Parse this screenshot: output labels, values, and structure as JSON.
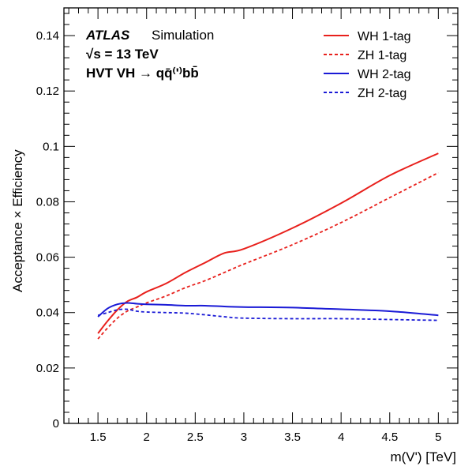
{
  "chart_data": {
    "type": "line",
    "xlabel": "m(V') [TeV]",
    "ylabel": "Acceptance × Efficiency",
    "xlim": [
      1.15,
      5.2
    ],
    "ylim": [
      0,
      0.15
    ],
    "xticks": [
      1.5,
      2,
      2.5,
      3,
      3.5,
      4,
      4.5,
      5
    ],
    "xtick_labels": [
      "1.5",
      "2",
      "2.5",
      "3",
      "3.5",
      "4",
      "4.5",
      "5"
    ],
    "yticks": [
      0,
      0.02,
      0.04,
      0.06,
      0.08,
      0.1,
      0.12,
      0.14
    ],
    "ytick_labels": [
      "0",
      "0.02",
      "0.04",
      "0.06",
      "0.08",
      "0.1",
      "0.12",
      "0.14"
    ],
    "annotations": {
      "experiment": "ATLAS",
      "label": "Simulation",
      "energy": "√s = 13 TeV",
      "process": "HVT VH → qq̄⁽'⁾bb̄"
    },
    "legend_position": "top-right",
    "series": [
      {
        "name": "WH 1-tag",
        "color": "#e8201c",
        "dash": "solid",
        "x": [
          1.5,
          1.6,
          1.7,
          1.8,
          1.9,
          2.0,
          2.2,
          2.4,
          2.6,
          2.8,
          3.0,
          3.5,
          4.0,
          4.5,
          5.0
        ],
        "y": [
          0.0325,
          0.037,
          0.041,
          0.044,
          0.0455,
          0.0475,
          0.0505,
          0.0545,
          0.058,
          0.0615,
          0.063,
          0.0705,
          0.0795,
          0.0895,
          0.0975
        ]
      },
      {
        "name": "ZH 1-tag",
        "color": "#e8201c",
        "dash": "dashed",
        "x": [
          1.5,
          1.6,
          1.7,
          1.8,
          1.9,
          2.0,
          2.2,
          2.4,
          2.6,
          2.8,
          3.0,
          3.5,
          4.0,
          4.5,
          5.0
        ],
        "y": [
          0.0305,
          0.0345,
          0.038,
          0.0405,
          0.042,
          0.0435,
          0.046,
          0.049,
          0.0515,
          0.0545,
          0.0575,
          0.0645,
          0.0725,
          0.0815,
          0.0905
        ]
      },
      {
        "name": "WH 2-tag",
        "color": "#1a1ad6",
        "dash": "solid",
        "x": [
          1.5,
          1.6,
          1.7,
          1.8,
          1.9,
          2.0,
          2.2,
          2.4,
          2.6,
          2.8,
          3.0,
          3.5,
          4.0,
          4.5,
          5.0
        ],
        "y": [
          0.0385,
          0.0415,
          0.043,
          0.0435,
          0.0432,
          0.043,
          0.0428,
          0.0425,
          0.0425,
          0.0422,
          0.042,
          0.0418,
          0.0412,
          0.0405,
          0.039
        ]
      },
      {
        "name": "ZH 2-tag",
        "color": "#1a1ad6",
        "dash": "dashed",
        "x": [
          1.5,
          1.6,
          1.7,
          1.8,
          1.9,
          2.0,
          2.2,
          2.4,
          2.6,
          2.8,
          3.0,
          3.5,
          4.0,
          4.5,
          5.0
        ],
        "y": [
          0.039,
          0.04,
          0.041,
          0.0412,
          0.0405,
          0.0402,
          0.04,
          0.0398,
          0.0392,
          0.0385,
          0.038,
          0.0378,
          0.0378,
          0.0375,
          0.0372
        ]
      }
    ]
  }
}
